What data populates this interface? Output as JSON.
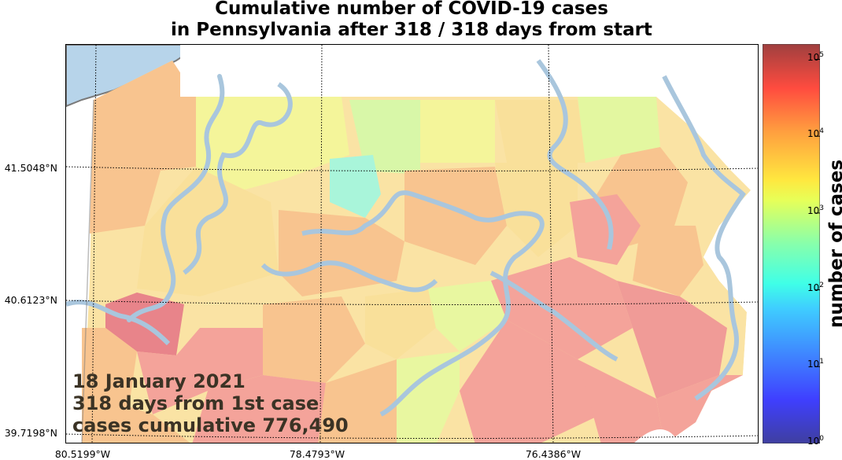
{
  "title": {
    "line1": "Cumulative number of COVID-19 cases",
    "line2": "in Pennsylvania after 318 / 318 days from start"
  },
  "overlay": {
    "date": "18 January 2021",
    "days_text": "318 days from 1st case",
    "cumulative_text": "cases cumulative 776,490"
  },
  "map": {
    "region": "Pennsylvania",
    "lat_labels": [
      "41.5048°N",
      "40.6123°N",
      "39.7198°N"
    ],
    "lon_labels": [
      "80.5199°W",
      "78.4793°W",
      "76.4386°W"
    ],
    "colors": {
      "water": "#b7d4ea",
      "river": "#a9c6dd",
      "border": "#7a7a7a",
      "high": "#f4a39a",
      "mid": "#f8c48f",
      "low": "#f9e09a",
      "lower": "#f4f59a",
      "lowest": "#a9f5da"
    }
  },
  "colorbar": {
    "label": "number of cases",
    "scale": "log",
    "colormap": "jet",
    "ticks": [
      {
        "base": "10",
        "exp": "0"
      },
      {
        "base": "10",
        "exp": "1"
      },
      {
        "base": "10",
        "exp": "2"
      },
      {
        "base": "10",
        "exp": "3"
      },
      {
        "base": "10",
        "exp": "4"
      },
      {
        "base": "10",
        "exp": "5"
      }
    ]
  }
}
